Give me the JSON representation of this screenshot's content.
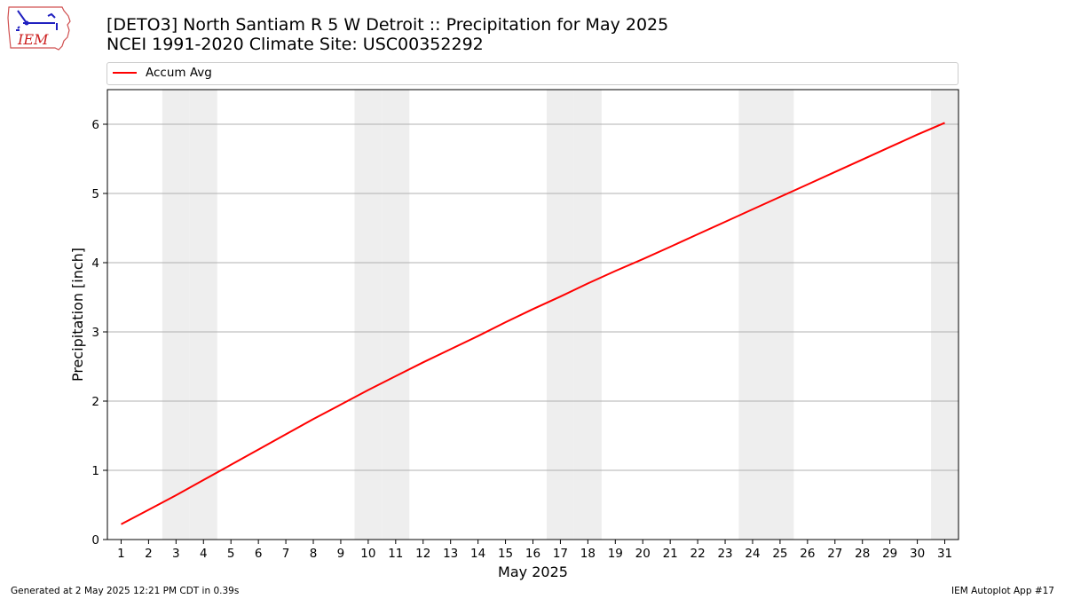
{
  "header": {
    "logo_text": "IEM",
    "title_line1": "[DETO3] North Santiam R 5 W Detroit :: Precipitation for May 2025",
    "title_line2": "NCEI 1991-2020 Climate Site: USC00352292"
  },
  "legend": {
    "items": [
      {
        "label": "Accum Avg",
        "color": "#ff0000"
      }
    ]
  },
  "footer": {
    "generated": "Generated at 2 May 2025 12:21 PM CDT in 0.39s",
    "app": "IEM Autoplot App #17"
  },
  "colors": {
    "line": "#ff0000",
    "weekend_shade": "#eeeeee",
    "grid": "#b0b0b0"
  },
  "chart_data": {
    "type": "line",
    "xlabel": "May 2025",
    "ylabel": "Precipitation [inch]",
    "x": [
      1,
      2,
      3,
      4,
      5,
      6,
      7,
      8,
      9,
      10,
      11,
      12,
      13,
      14,
      15,
      16,
      17,
      18,
      19,
      20,
      21,
      22,
      23,
      24,
      25,
      26,
      27,
      28,
      29,
      30,
      31
    ],
    "xlim": [
      0.5,
      31.5
    ],
    "ylim": [
      0,
      6.5
    ],
    "yticks": [
      0,
      1,
      2,
      3,
      4,
      5,
      6
    ],
    "grid": "horizontal",
    "legend_position": "top",
    "shaded_days": [
      3,
      4,
      10,
      11,
      17,
      18,
      24,
      25,
      31
    ],
    "series": [
      {
        "name": "Accum Avg",
        "color": "#ff0000",
        "values": [
          0.22,
          0.43,
          0.64,
          0.86,
          1.08,
          1.3,
          1.52,
          1.74,
          1.95,
          2.16,
          2.36,
          2.56,
          2.75,
          2.94,
          3.14,
          3.33,
          3.51,
          3.7,
          3.88,
          4.05,
          4.23,
          4.41,
          4.59,
          4.77,
          4.95,
          5.13,
          5.31,
          5.49,
          5.67,
          5.85,
          6.02
        ]
      }
    ]
  }
}
